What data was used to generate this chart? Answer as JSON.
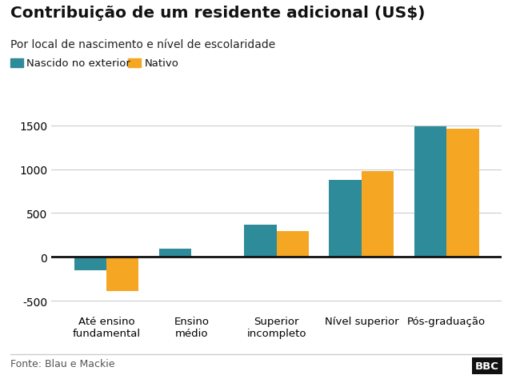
{
  "title": "Contribuição de um residente adicional (US$)",
  "subtitle": "Por local de nascimento e nível de escolaridade",
  "categories": [
    "Até ensino\nfundamental",
    "Ensino\nmédio",
    "Superior\nincompleto",
    "Nível superior",
    "Pós-graduação"
  ],
  "nascido_exterior": [
    -150,
    90,
    370,
    880,
    1490
  ],
  "nativo": [
    -390,
    5,
    290,
    975,
    1460
  ],
  "color_exterior": "#2E8B9A",
  "color_nativo": "#F5A623",
  "legend_exterior": "Nascido no exterior",
  "legend_nativo": "Nativo",
  "ylim": [
    -600,
    1700
  ],
  "yticks": [
    -500,
    0,
    500,
    1000,
    1500
  ],
  "fonte": "Fonte: Blau e Mackie",
  "bbc_text": "BBC",
  "background_color": "#ffffff",
  "grid_color": "#cccccc",
  "bar_width": 0.38
}
